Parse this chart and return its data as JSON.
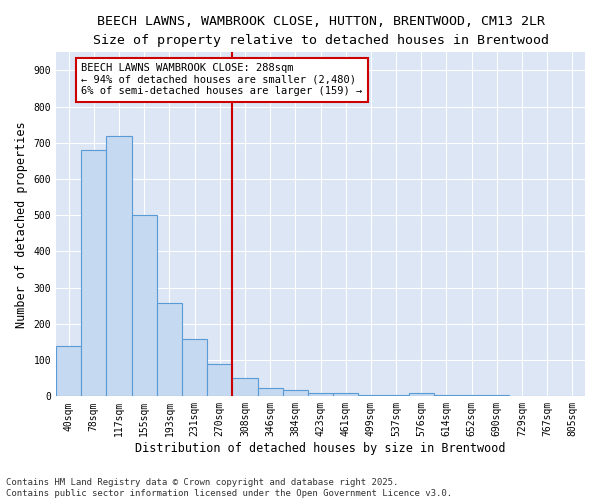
{
  "title_line1": "BEECH LAWNS, WAMBROOK CLOSE, HUTTON, BRENTWOOD, CM13 2LR",
  "title_line2": "Size of property relative to detached houses in Brentwood",
  "xlabel": "Distribution of detached houses by size in Brentwood",
  "ylabel": "Number of detached properties",
  "categories": [
    "40sqm",
    "78sqm",
    "117sqm",
    "155sqm",
    "193sqm",
    "231sqm",
    "270sqm",
    "308sqm",
    "346sqm",
    "384sqm",
    "423sqm",
    "461sqm",
    "499sqm",
    "537sqm",
    "576sqm",
    "614sqm",
    "652sqm",
    "690sqm",
    "729sqm",
    "767sqm",
    "805sqm"
  ],
  "values": [
    140,
    680,
    720,
    500,
    258,
    158,
    88,
    50,
    22,
    18,
    10,
    10,
    5,
    5,
    8,
    4,
    3,
    3,
    2,
    2,
    2
  ],
  "bar_color": "#c5d9f1",
  "bar_edge_color": "#5b9bd5",
  "vline_index": 7,
  "vline_color": "#cc0000",
  "annotation_text": "BEECH LAWNS WAMBROOK CLOSE: 288sqm\n← 94% of detached houses are smaller (2,480)\n6% of semi-detached houses are larger (159) →",
  "annotation_box_color": "#cc0000",
  "ylim": [
    0,
    950
  ],
  "yticks": [
    0,
    100,
    200,
    300,
    400,
    500,
    600,
    700,
    800,
    900
  ],
  "background_color": "#dce6f5",
  "grid_color": "#ffffff",
  "fig_background": "#ffffff",
  "footer_line1": "Contains HM Land Registry data © Crown copyright and database right 2025.",
  "footer_line2": "Contains public sector information licensed under the Open Government Licence v3.0.",
  "title_fontsize": 9.5,
  "subtitle_fontsize": 9.5,
  "axis_label_fontsize": 8.5,
  "tick_fontsize": 7,
  "annotation_fontsize": 7.5,
  "footer_fontsize": 6.5
}
